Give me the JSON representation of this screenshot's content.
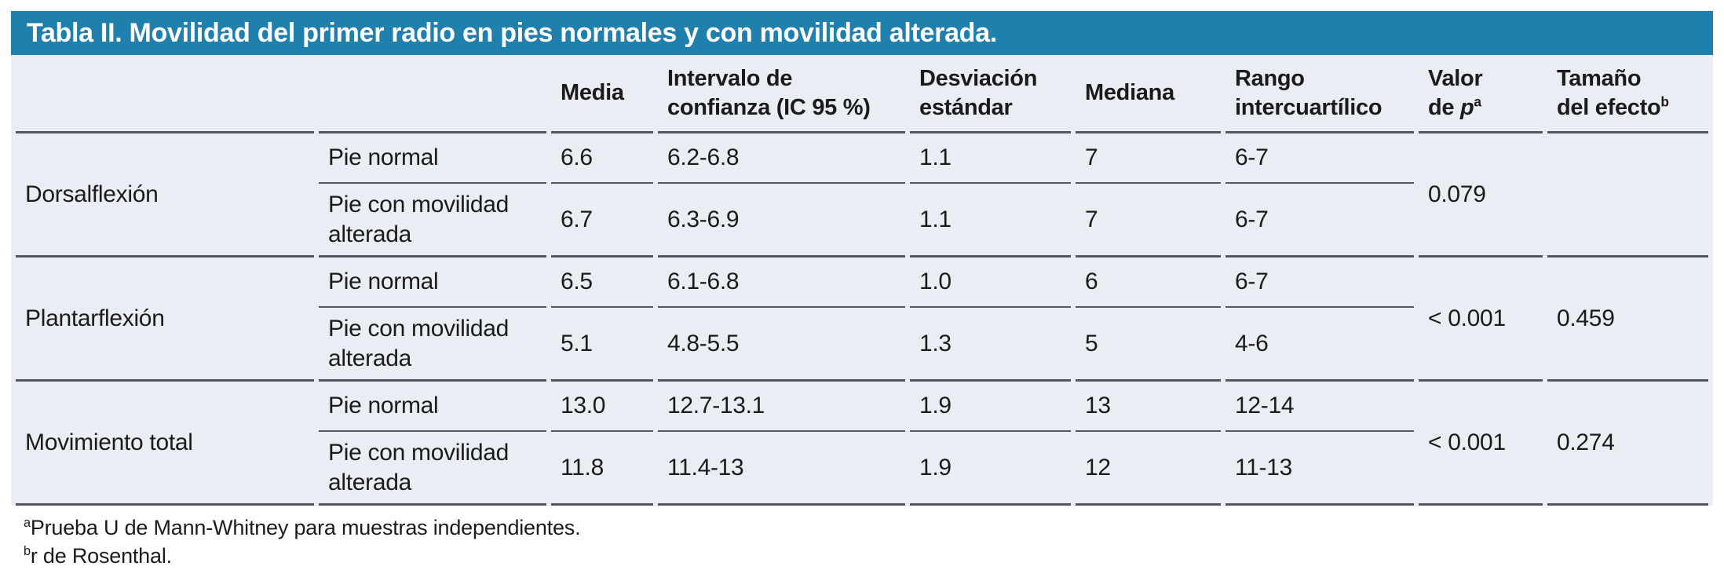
{
  "table": {
    "title": "Tabla II. Movilidad del primer radio en pies normales y con movilidad alterada.",
    "columns": {
      "media": "Media",
      "ic": [
        "Intervalo de",
        "confianza (IC 95 %)"
      ],
      "sd": [
        "Desviación",
        "estándar"
      ],
      "mediana": "Mediana",
      "rango": [
        "Rango",
        "intercuartílico"
      ],
      "p": {
        "line1": "Valor",
        "line2_prefix": "de ",
        "italic": "p",
        "sup": "a"
      },
      "effect": {
        "line1": "Tamaño",
        "line2": "del efecto",
        "sup": "b"
      }
    },
    "sections": [
      {
        "label": "Dorsalflexión",
        "p": "0.079",
        "effect": "",
        "rows": [
          {
            "sublabel": "Pie normal",
            "media": "6.6",
            "ic": "6.2-6.8",
            "sd": "1.1",
            "mediana": "7",
            "rango": "6-7"
          },
          {
            "sublabel": "Pie con movilidad alterada",
            "media": "6.7",
            "ic": "6.3-6.9",
            "sd": "1.1",
            "mediana": "7",
            "rango": "6-7"
          }
        ]
      },
      {
        "label": "Plantarflexión",
        "p": "< 0.001",
        "effect": "0.459",
        "rows": [
          {
            "sublabel": "Pie normal",
            "media": "6.5",
            "ic": "6.1-6.8",
            "sd": "1.0",
            "mediana": "6",
            "rango": "6-7"
          },
          {
            "sublabel": "Pie con movilidad alterada",
            "media": "5.1",
            "ic": "4.8-5.5",
            "sd": "1.3",
            "mediana": "5",
            "rango": "4-6"
          }
        ]
      },
      {
        "label": "Movimiento total",
        "p": "< 0.001",
        "effect": "0.274",
        "rows": [
          {
            "sublabel": "Pie normal",
            "media": "13.0",
            "ic": "12.7-13.1",
            "sd": "1.9",
            "mediana": "13",
            "rango": "12-14"
          },
          {
            "sublabel": "Pie con movilidad alterada",
            "media": "11.8",
            "ic": "11.4-13",
            "sd": "1.9",
            "mediana": "12",
            "rango": "11-13"
          }
        ]
      }
    ],
    "footnotes": [
      {
        "sup": "a",
        "text": "Prueba U de Mann-Whitney para muestras independientes."
      },
      {
        "sup": "b",
        "text": "r de Rosenthal."
      }
    ],
    "colors": {
      "title_bg": "#2080ad",
      "body_bg": "#eaedf4",
      "rule": "#54575c"
    }
  }
}
